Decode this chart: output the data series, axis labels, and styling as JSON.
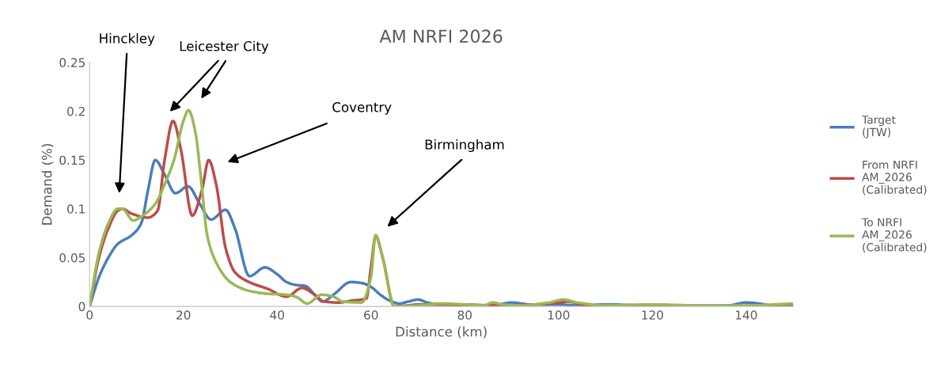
{
  "chart_data": {
    "type": "line",
    "title": "AM NRFI 2026",
    "xlabel": "Distance (km)",
    "ylabel": "Demand (%)",
    "xlim": [
      0,
      150
    ],
    "xticks": [
      0,
      20,
      40,
      60,
      80,
      100,
      120,
      140
    ],
    "ylim": [
      0,
      0.25
    ],
    "yticks": [
      0,
      0.05,
      0.1,
      0.15,
      0.2,
      0.25
    ],
    "grid": false,
    "legend": "right",
    "marker": "none",
    "line_style": "solid",
    "series": [
      {
        "name": "Target\n(JTW)",
        "color": "#4a7ebb",
        "x": [
          0,
          2,
          4,
          6,
          9,
          11,
          12.5,
          14,
          16,
          18.3,
          21,
          23.5,
          25.9,
          29,
          31,
          34.1,
          37.4,
          40,
          42,
          44,
          46,
          48,
          49.7,
          52,
          55.7,
          58,
          60,
          62,
          64,
          66,
          68,
          70,
          72,
          74,
          80,
          86,
          90,
          94,
          100,
          104,
          110,
          120,
          130,
          136,
          140,
          144,
          146,
          150
        ],
        "values": [
          0,
          0.03,
          0.05,
          0.064,
          0.073,
          0.085,
          0.12,
          0.15,
          0.135,
          0.116,
          0.123,
          0.105,
          0.089,
          0.099,
          0.08,
          0.031,
          0.04,
          0.033,
          0.025,
          0.022,
          0.021,
          0.012,
          0.005,
          0.012,
          0.025,
          0.024,
          0.02,
          0.012,
          0.006,
          0.003,
          0.005,
          0.007,
          0.004,
          0.002,
          0.002,
          0.001,
          0.004,
          0.002,
          0.002,
          0.001,
          0.002,
          0.001,
          0.001,
          0.001,
          0.004,
          0.002,
          0,
          0
        ]
      },
      {
        "name": "From NRFI\nAM_2026\n(Calibrated)",
        "color": "#be4b48",
        "x": [
          0,
          2,
          4,
          6,
          7,
          9,
          12.4,
          14.5,
          16,
          17.8,
          19.5,
          21.9,
          24,
          25.4,
          27,
          29,
          31,
          34,
          38,
          42,
          45.3,
          48,
          50,
          53,
          56,
          59,
          60,
          61,
          62.5,
          65,
          68,
          70,
          75,
          80,
          90,
          95,
          100,
          102,
          105,
          110,
          120,
          130,
          140,
          150
        ],
        "values": [
          0,
          0.05,
          0.08,
          0.098,
          0.1,
          0.095,
          0.091,
          0.098,
          0.15,
          0.19,
          0.16,
          0.093,
          0.12,
          0.15,
          0.125,
          0.06,
          0.035,
          0.025,
          0.018,
          0.01,
          0.019,
          0.012,
          0.005,
          0.004,
          0.006,
          0.008,
          0.04,
          0.072,
          0.05,
          0,
          0.001,
          0.002,
          0.002,
          0.001,
          0.001,
          0.002,
          0.004,
          0.005,
          0.002,
          0,
          0.001,
          0,
          0,
          0.002
        ]
      },
      {
        "name": "To NRFI\nAM_2026\n(Calibrated)",
        "color": "#98b954",
        "x": [
          0,
          2,
          4,
          6,
          7,
          9.3,
          11,
          14,
          16,
          18,
          20,
          21.1,
          22.5,
          24,
          25,
          27,
          30,
          34,
          38,
          42,
          44,
          46.4,
          49.5,
          52,
          54,
          58,
          60,
          61,
          62.5,
          65,
          70,
          75,
          80,
          84,
          86,
          88,
          92,
          98,
          101,
          104,
          110,
          120,
          130,
          140,
          150
        ],
        "values": [
          0,
          0.055,
          0.085,
          0.1,
          0.1,
          0.088,
          0.092,
          0.105,
          0.125,
          0.15,
          0.19,
          0.201,
          0.18,
          0.12,
          0.075,
          0.045,
          0.025,
          0.016,
          0.013,
          0.012,
          0.01,
          0.003,
          0.012,
          0.01,
          0.005,
          0.004,
          0.03,
          0.073,
          0.05,
          0,
          0.001,
          0.003,
          0.002,
          0.001,
          0.004,
          0.002,
          0.001,
          0.004,
          0.007,
          0.004,
          0.001,
          0.002,
          0.001,
          0.001,
          0.003
        ]
      }
    ],
    "annotations": [
      "Hinckley",
      "Leicester City",
      "Coventry",
      "Birmingham"
    ]
  }
}
